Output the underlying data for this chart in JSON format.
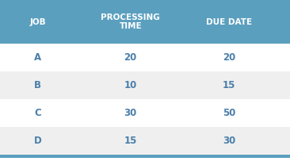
{
  "header_row": [
    "JOB",
    "PROCESSING\nTIME",
    "DUE DATE"
  ],
  "rows": [
    [
      "A",
      "20",
      "20"
    ],
    [
      "B",
      "10",
      "15"
    ],
    [
      "C",
      "30",
      "50"
    ],
    [
      "D",
      "15",
      "30"
    ]
  ],
  "header_bg": "#5b9fbf",
  "header_text_color": "#ffffff",
  "data_text_color": "#4a7faa",
  "row_alt_bg": "#efefef",
  "row_white_bg": "#ffffff",
  "border_color": "#5b9fbf",
  "header_fontsize": 7.5,
  "data_fontsize": 8.5,
  "figsize": [
    3.66,
    2.08
  ],
  "dpi": 100
}
